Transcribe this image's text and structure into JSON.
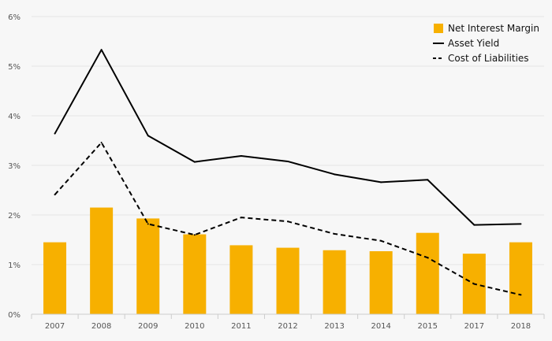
{
  "chart_data": {
    "type": "bar",
    "title": "",
    "xlabel": "",
    "ylabel": "",
    "categories": [
      "2007",
      "2008",
      "2009",
      "2010",
      "2011",
      "2012",
      "2013",
      "2014",
      "2015",
      "2017",
      "2018"
    ],
    "ylim": [
      0,
      6
    ],
    "y_ticks": [
      0,
      1,
      2,
      3,
      4,
      5,
      6
    ],
    "y_tick_labels": [
      "0%",
      "1%",
      "2%",
      "3%",
      "4%",
      "5%",
      "6%"
    ],
    "grid": true,
    "legend_position": "top-right",
    "series": [
      {
        "name": "Net Interest Margin",
        "kind": "bar",
        "color": "#f7b000",
        "values": [
          1.45,
          2.15,
          1.93,
          1.61,
          1.39,
          1.34,
          1.29,
          1.27,
          1.64,
          1.22,
          1.45
        ]
      },
      {
        "name": "Asset Yield",
        "kind": "line",
        "style": "solid",
        "color": "#000000",
        "values": [
          3.64,
          5.33,
          3.6,
          3.07,
          3.19,
          3.08,
          2.82,
          2.66,
          2.71,
          1.8,
          1.82
        ]
      },
      {
        "name": "Cost of Liabilities",
        "kind": "line",
        "style": "dashed",
        "color": "#000000",
        "values": [
          2.41,
          3.46,
          1.82,
          1.6,
          1.95,
          1.87,
          1.62,
          1.48,
          1.14,
          0.61,
          0.39
        ]
      }
    ]
  }
}
